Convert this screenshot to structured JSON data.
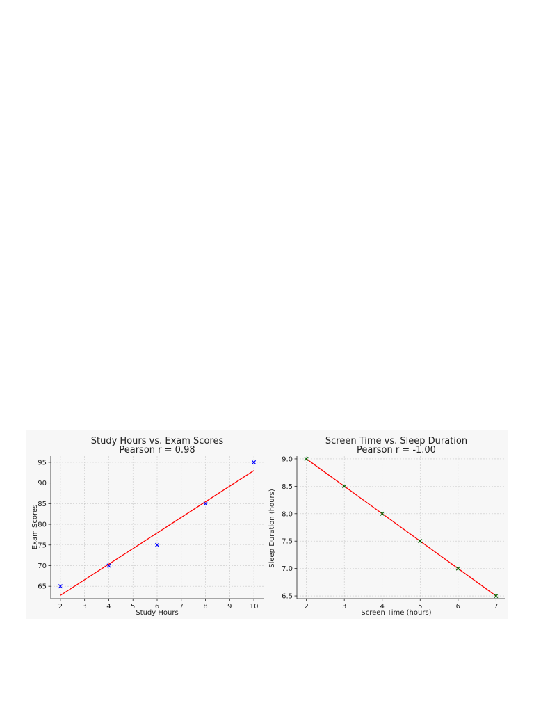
{
  "chart_data": [
    {
      "type": "scatter",
      "title": "Study Hours vs. Exam Scores",
      "subtitle": "Pearson r = 0.98",
      "xlabel": "Study Hours",
      "ylabel": "Exam Scores",
      "xlim": [
        1.6,
        10.4
      ],
      "ylim": [
        62,
        96.5
      ],
      "xticks": [
        2,
        3,
        4,
        5,
        6,
        7,
        8,
        9,
        10
      ],
      "yticks": [
        65,
        70,
        75,
        80,
        85,
        90,
        95
      ],
      "grid": true,
      "marker": "x",
      "marker_color": "#0000ff",
      "series": [
        {
          "x": [
            2,
            4,
            6,
            8,
            10
          ],
          "y": [
            65,
            70,
            75,
            85,
            95
          ]
        }
      ],
      "fit_line": {
        "x": [
          2,
          10
        ],
        "y": [
          62.8,
          93.0
        ],
        "color": "#ff0000"
      }
    },
    {
      "type": "scatter",
      "title": "Screen Time vs. Sleep Duration",
      "subtitle": "Pearson r = -1.00",
      "xlabel": "Screen Time (hours)",
      "ylabel": "Sleep Duration (hours)",
      "xlim": [
        1.75,
        7.25
      ],
      "ylim": [
        6.45,
        9.05
      ],
      "xticks": [
        2,
        3,
        4,
        5,
        6,
        7
      ],
      "yticks": [
        6.5,
        7.0,
        7.5,
        8.0,
        8.5,
        9.0
      ],
      "ytick_labels": [
        "6.5",
        "7.0",
        "7.5",
        "8.0",
        "8.5",
        "9.0"
      ],
      "grid": true,
      "marker": "x",
      "marker_color": "#006400",
      "series": [
        {
          "x": [
            2,
            3,
            4,
            5,
            6,
            7
          ],
          "y": [
            9.0,
            8.5,
            8.0,
            7.5,
            7.0,
            6.5
          ]
        }
      ],
      "fit_line": {
        "x": [
          2,
          7
        ],
        "y": [
          9.0,
          6.5
        ],
        "color": "#ff0000"
      }
    }
  ]
}
